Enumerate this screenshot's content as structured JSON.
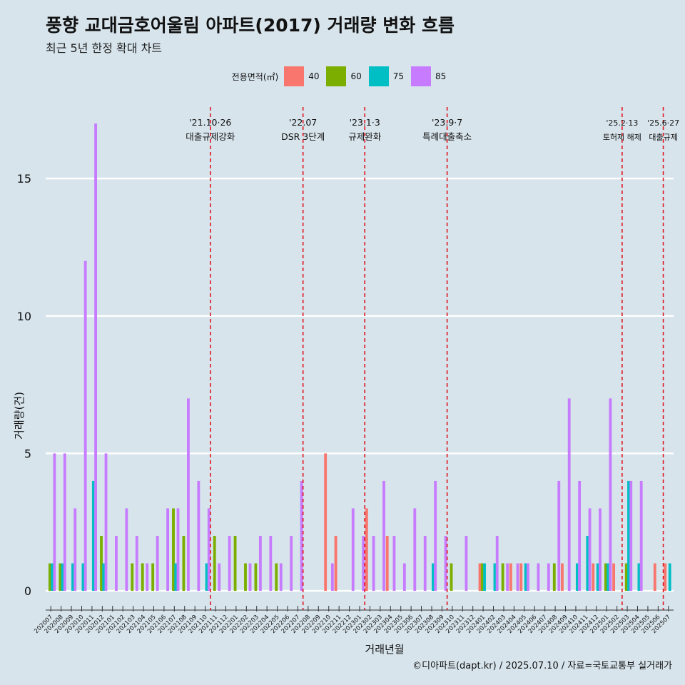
{
  "header": {
    "title": "풍향 교대금호어울림 아파트(2017) 거래량 변화 흐름",
    "subtitle": "최근 5년 한정 확대 차트"
  },
  "legend": {
    "title": "전용면적(㎡)",
    "items": [
      {
        "label": "40",
        "color": "#f8766d"
      },
      {
        "label": "60",
        "color": "#7cae00"
      },
      {
        "label": "75",
        "color": "#00bfc4"
      },
      {
        "label": "85",
        "color": "#c77cff"
      }
    ]
  },
  "caption": "©디아파트(dapt.kr) / 2025.07.10 / 자료=국토교통부 실거래가",
  "chart_data": {
    "type": "bar",
    "title": "풍향 교대금호어울림 아파트(2017) 거래량 변화 흐름",
    "xlabel": "거래년월",
    "ylabel": "거래량(건)",
    "ylim": [
      -0.7,
      17.6
    ],
    "yticks": [
      0,
      5,
      10,
      15
    ],
    "grid": true,
    "legend_position": "top",
    "categories": [
      "202007",
      "202008",
      "202009",
      "202010",
      "202011",
      "202012",
      "202101",
      "202102",
      "202103",
      "202104",
      "202105",
      "202106",
      "202107",
      "202108",
      "202109",
      "202110",
      "202111",
      "202112",
      "202201",
      "202202",
      "202203",
      "202204",
      "202205",
      "202206",
      "202207",
      "202208",
      "202209",
      "202210",
      "202211",
      "202212",
      "202301",
      "202302",
      "202303",
      "202304",
      "202305",
      "202306",
      "202307",
      "202308",
      "202309",
      "202310",
      "202311",
      "202312",
      "202401",
      "202402",
      "202403",
      "202404",
      "202405",
      "202406",
      "202407",
      "202408",
      "202409",
      "202410",
      "202411",
      "202412",
      "202501",
      "202502",
      "202503",
      "202504",
      "202505",
      "202506",
      "202507"
    ],
    "series": [
      {
        "name": "40",
        "values": [
          0,
          0,
          0,
          0,
          0,
          0,
          0,
          0,
          0,
          0,
          0,
          0,
          0,
          0,
          0,
          0,
          0,
          0,
          0,
          0,
          0,
          0,
          0,
          0,
          0,
          0,
          0,
          5,
          2,
          0,
          0,
          3,
          0,
          2,
          0,
          0,
          0,
          0,
          0,
          0,
          0,
          0,
          1,
          0,
          0,
          1,
          1,
          0,
          0,
          0,
          1,
          0,
          0,
          1,
          0,
          1,
          0,
          0,
          0,
          1,
          1
        ]
      },
      {
        "name": "60",
        "values": [
          1,
          1,
          0,
          0,
          0,
          2,
          0,
          0,
          1,
          1,
          1,
          0,
          3,
          2,
          0,
          0,
          2,
          0,
          2,
          1,
          1,
          0,
          1,
          0,
          0,
          0,
          0,
          0,
          0,
          0,
          0,
          0,
          0,
          0,
          0,
          0,
          0,
          0,
          0,
          1,
          0,
          0,
          1,
          0,
          1,
          0,
          0,
          0,
          0,
          1,
          0,
          0,
          0,
          0,
          1,
          0,
          1,
          0,
          0,
          0,
          0
        ]
      },
      {
        "name": "75",
        "values": [
          1,
          1,
          1,
          1,
          4,
          1,
          0,
          0,
          0,
          0,
          0,
          0,
          1,
          0,
          0,
          1,
          0,
          0,
          0,
          0,
          0,
          0,
          0,
          0,
          0,
          0,
          0,
          0,
          0,
          0,
          0,
          0,
          0,
          0,
          0,
          0,
          0,
          1,
          0,
          0,
          0,
          0,
          1,
          1,
          0,
          0,
          1,
          0,
          0,
          0,
          0,
          1,
          2,
          1,
          1,
          0,
          4,
          1,
          0,
          0,
          1
        ]
      },
      {
        "name": "85",
        "values": [
          5,
          5,
          3,
          12,
          17,
          5,
          2,
          3,
          2,
          1,
          2,
          3,
          3,
          7,
          4,
          3,
          1,
          2,
          0,
          1,
          2,
          2,
          1,
          2,
          4,
          0,
          0,
          1,
          0,
          3,
          2,
          2,
          4,
          2,
          1,
          3,
          2,
          4,
          2,
          0,
          2,
          0,
          0,
          2,
          1,
          1,
          1,
          1,
          1,
          4,
          7,
          4,
          3,
          3,
          7,
          0,
          4,
          4,
          0,
          0,
          0
        ]
      }
    ],
    "events": [
      {
        "after": "202110",
        "date": "'21.10·26",
        "label": "대출규제강화"
      },
      {
        "after": "202207",
        "date": "'22.07",
        "label": "DSR 3단계"
      },
      {
        "after": "202301",
        "date": "'23.1·3",
        "label": "규제완화"
      },
      {
        "after": "202309",
        "date": "'23.9·7",
        "label": "특례대출축소"
      },
      {
        "after": "202502",
        "date": "'25.2·13",
        "label": "토허제 해제"
      },
      {
        "after": "202506",
        "date": "'25.6·27",
        "label": "대출규제"
      }
    ]
  }
}
